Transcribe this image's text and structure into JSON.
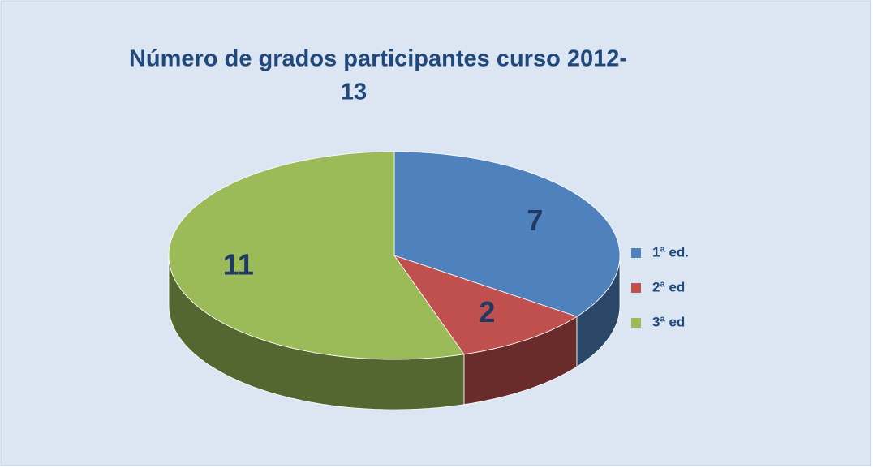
{
  "chart_data": {
    "type": "pie",
    "title": [
      "Número de grados participantes curso 2012-",
      "13"
    ],
    "categories": [
      "1ª ed.",
      "2ª ed",
      "3ª ed"
    ],
    "values": [
      7,
      2,
      11
    ],
    "colors": [
      "#4f81bd",
      "#c0504d",
      "#9bbb59"
    ],
    "legend": "right"
  }
}
